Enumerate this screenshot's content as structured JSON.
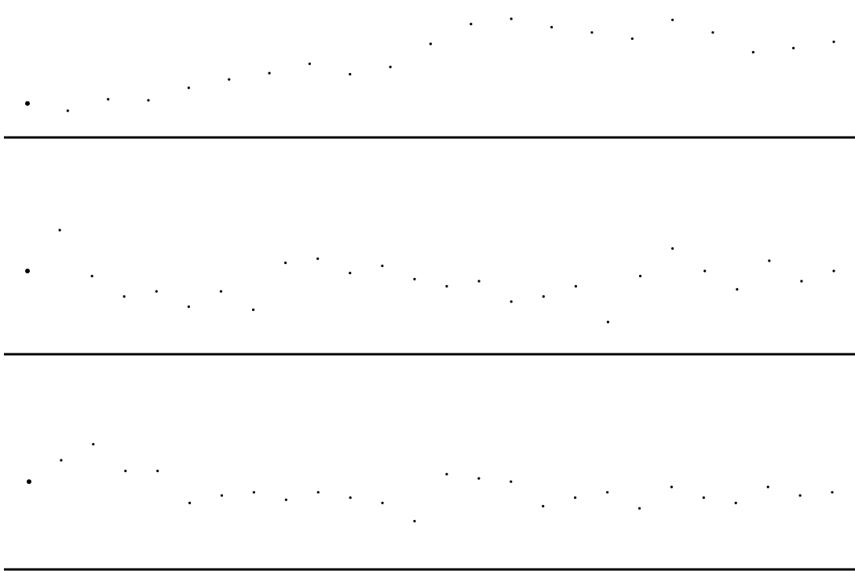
{
  "chart_data": [
    {
      "type": "scatter",
      "title": "",
      "xlabel": "",
      "ylabel": "",
      "grid": false,
      "legend": "none",
      "point_color": "#000000",
      "baseline_color": "#000000",
      "x_range": [
        0,
        100
      ],
      "y_range": [
        0,
        100
      ],
      "series": [
        {
          "x": [
            0,
            5,
            10,
            15,
            20,
            25,
            30,
            35,
            40,
            45,
            50,
            55,
            60,
            65,
            70,
            75,
            80,
            85,
            90,
            95,
            100
          ],
          "y": [
            10,
            3,
            14,
            13,
            25,
            33,
            39,
            48,
            38,
            45,
            67,
            86,
            91,
            83,
            78,
            72,
            90,
            78,
            59,
            63,
            69
          ]
        }
      ]
    },
    {
      "type": "scatter",
      "title": "",
      "xlabel": "",
      "ylabel": "",
      "grid": false,
      "legend": "none",
      "point_color": "#000000",
      "baseline_color": "#000000",
      "x_range": [
        0,
        100
      ],
      "y_range": [
        0,
        100
      ],
      "series": [
        {
          "x": [
            0,
            4,
            8,
            12,
            16,
            20,
            24,
            28,
            32,
            36,
            40,
            44,
            48,
            52,
            56,
            60,
            64,
            68,
            72,
            76,
            80,
            84,
            88,
            92,
            96,
            100
          ],
          "y": [
            50,
            90,
            45,
            25,
            30,
            15,
            30,
            12,
            58,
            62,
            48,
            55,
            42,
            35,
            40,
            20,
            25,
            35,
            0,
            45,
            72,
            50,
            32,
            60,
            40,
            50
          ]
        }
      ]
    },
    {
      "type": "scatter",
      "title": "",
      "xlabel": "",
      "ylabel": "",
      "grid": false,
      "legend": "none",
      "point_color": "#000000",
      "baseline_color": "#000000",
      "x_range": [
        0,
        100
      ],
      "y_range": [
        0,
        100
      ],
      "series": [
        {
          "x": [
            0,
            4,
            8,
            12,
            16,
            20,
            24,
            28,
            32,
            36,
            40,
            44,
            48,
            52,
            56,
            60,
            64,
            68,
            72,
            76,
            80,
            84,
            88,
            92,
            96,
            100
          ],
          "y": [
            55,
            75,
            90,
            65,
            65,
            35,
            42,
            45,
            38,
            45,
            40,
            35,
            18,
            62,
            58,
            55,
            32,
            40,
            45,
            30,
            50,
            40,
            35,
            50,
            42,
            45
          ]
        }
      ]
    }
  ]
}
